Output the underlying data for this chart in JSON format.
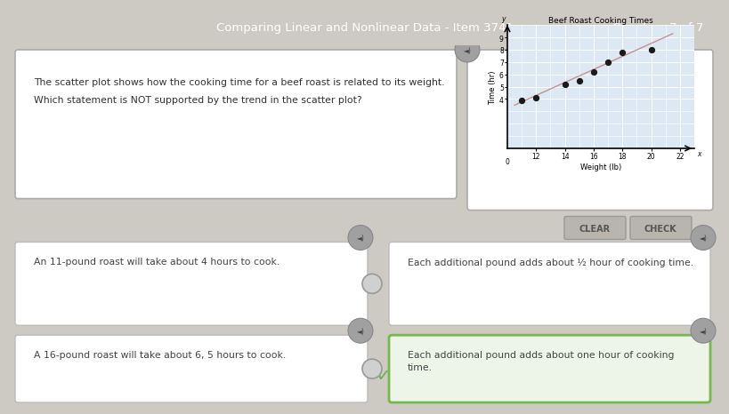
{
  "title_bar_text": "Comparing Linear and Nonlinear Data - Item 3741",
  "title_bar_right": "Question 7 of 7",
  "title_bar_color": "#5c5c5c",
  "title_bar_text_color": "#ffffff",
  "bg_color": "#cccac3",
  "question_text_line1": "The scatter plot shows how the cooking time for a beef roast is related to its weight.",
  "question_text_line2": "Which statement is NOT supported by the trend in the scatter plot?",
  "chart_title": "Beef Roast Cooking Times",
  "chart_xlabel": "Weight (lb)",
  "chart_ylabel": "Time (hr)",
  "chart_bg": "#dce9f5",
  "scatter_x": [
    11,
    12,
    14,
    15,
    16,
    17,
    18,
    20
  ],
  "scatter_y": [
    3.9,
    4.1,
    5.2,
    5.5,
    6.2,
    7.0,
    7.8,
    8.0
  ],
  "trend_x": [
    10.5,
    21.5
  ],
  "trend_y": [
    3.5,
    9.3
  ],
  "trend_color": "#c08080",
  "dot_color": "#1a1a1a",
  "xmin": 10,
  "xmax": 23,
  "ymin": 0,
  "ymax": 10,
  "xticks": [
    12,
    14,
    16,
    18,
    20,
    22
  ],
  "yticks": [
    4,
    5,
    6,
    7,
    8,
    9
  ],
  "answer_boxes": [
    {
      "text": "An 11-pound roast will take about 4 hours to cook.",
      "col": 0,
      "row": 0,
      "selected": false
    },
    {
      "text": "Each additional pound adds about ½ hour of cooking time.",
      "col": 1,
      "row": 0,
      "selected": false
    },
    {
      "text": "A 16-pound roast will take about 6, 5 hours to cook.",
      "col": 0,
      "row": 1,
      "selected": false
    },
    {
      "text": "Each additional pound adds about one hour of cooking\ntime.",
      "col": 1,
      "row": 1,
      "selected": true
    }
  ],
  "button_clear": "CLEAR",
  "button_check": "CHECK",
  "button_color": "#b8b5ae",
  "button_text_color": "#555555",
  "speaker_color": "#a0a0a0",
  "panel_white": "#ffffff",
  "panel_selected_face": "#edf5e8",
  "panel_selected_edge": "#76b84e",
  "panel_normal_edge": "#bbbbbb",
  "checkmark_color": "#6ab04c",
  "radio_color": "#d0d0d0"
}
